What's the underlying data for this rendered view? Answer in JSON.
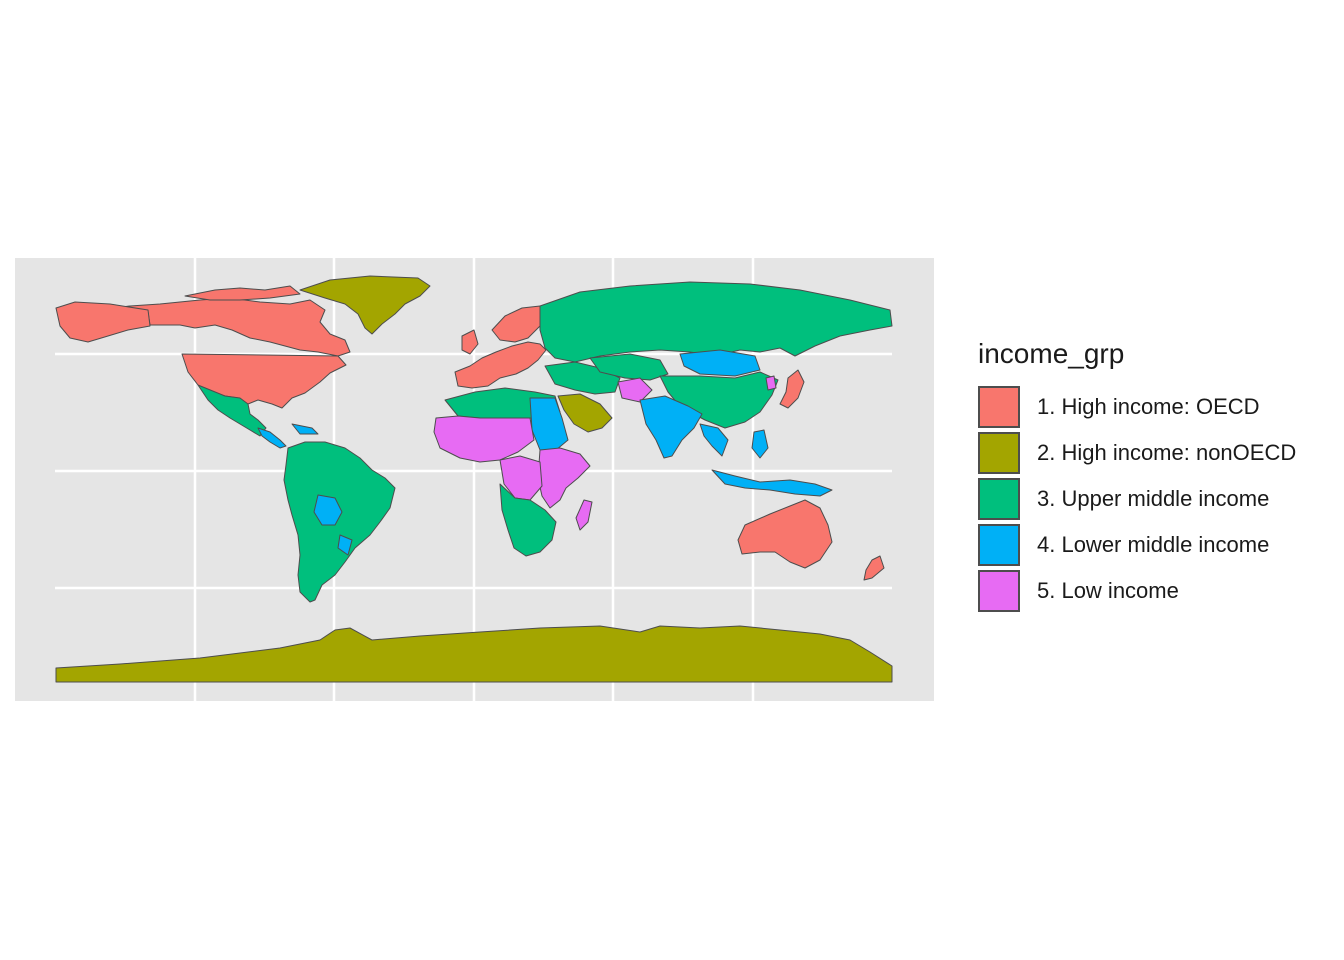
{
  "legend": {
    "title": "income_grp",
    "items": [
      {
        "label": "1. High income: OECD",
        "color": "#F8766D"
      },
      {
        "label": "2. High income: nonOECD",
        "color": "#A3A500"
      },
      {
        "label": "3. Upper middle income",
        "color": "#00BF7D"
      },
      {
        "label": "4. Lower middle income",
        "color": "#00B0F6"
      },
      {
        "label": "5. Low income",
        "color": "#E76BF3"
      }
    ]
  },
  "map": {
    "projection": "equirectangular world map",
    "panel_background": "#e5e5e5",
    "gridline_color": "#ffffff",
    "border_color": "#4d4d4d",
    "grid": true
  }
}
